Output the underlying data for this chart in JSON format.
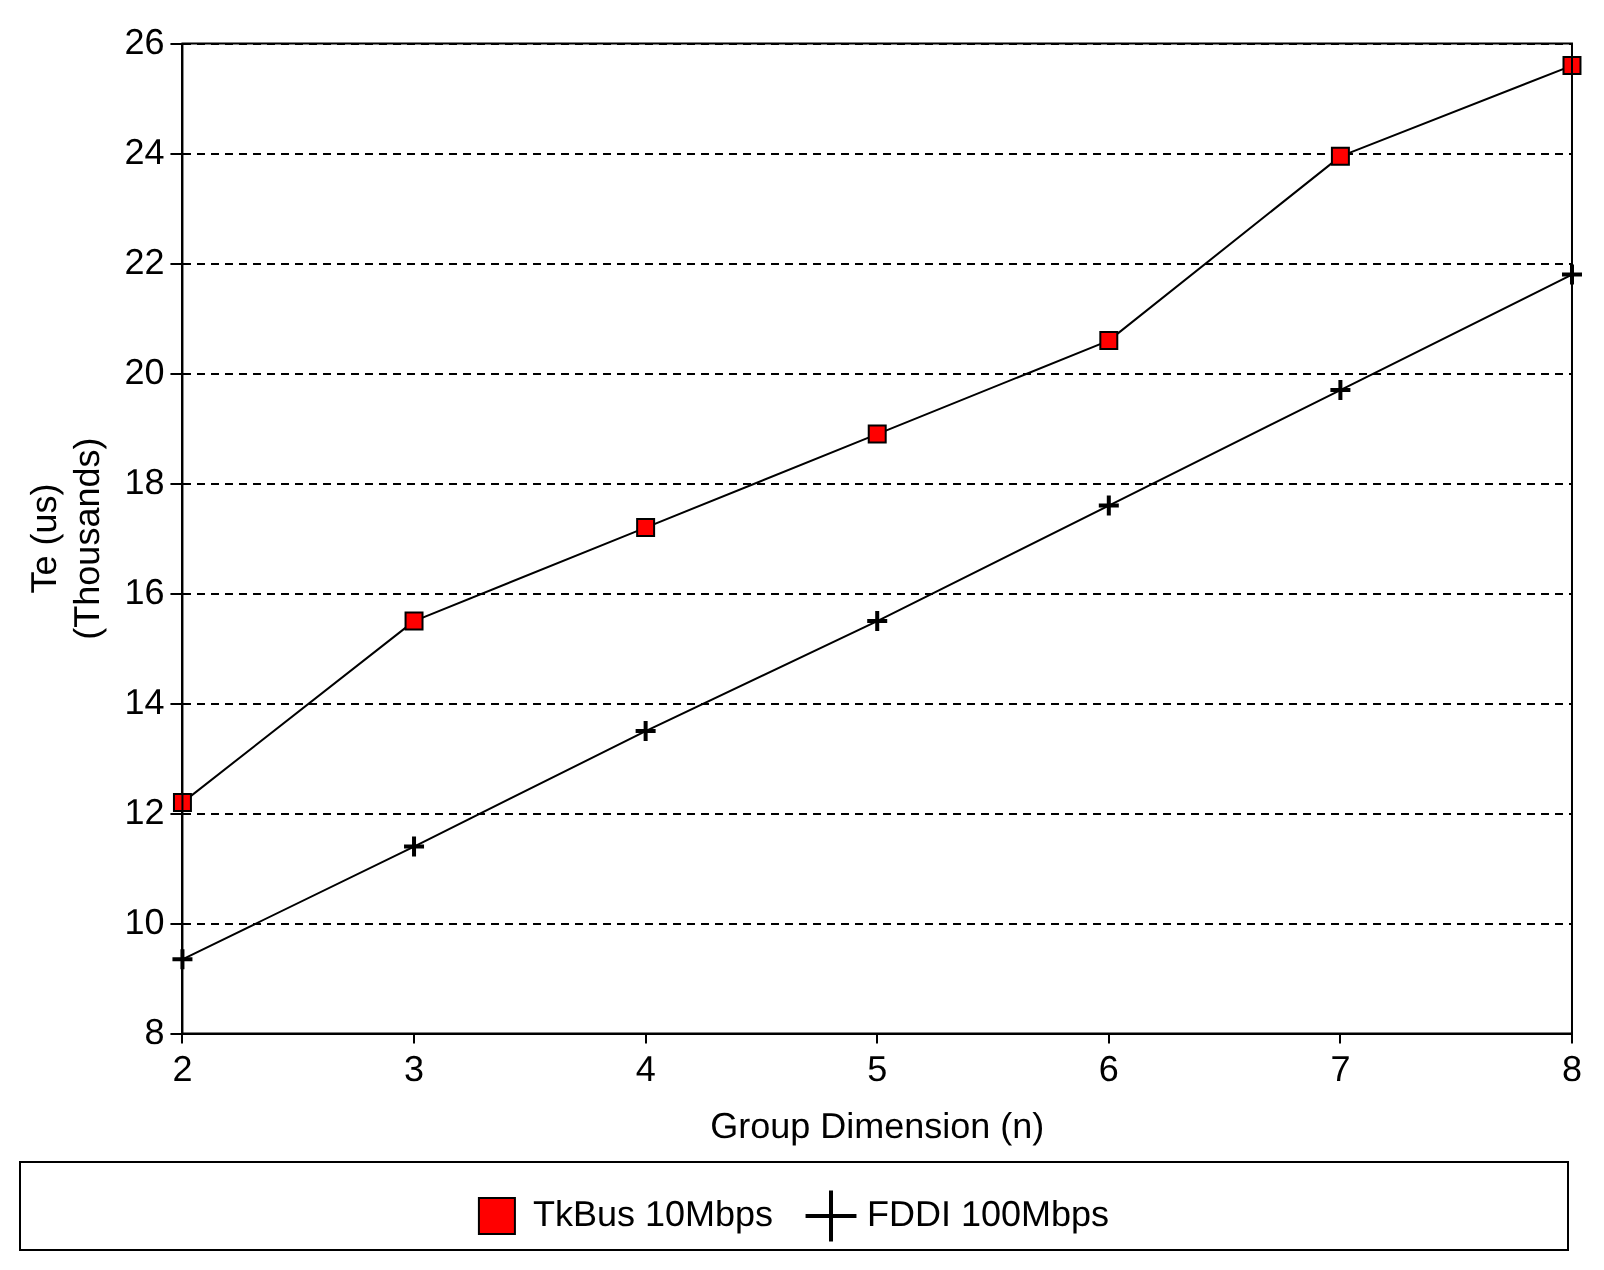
{
  "chart_data": {
    "type": "line",
    "xlabel": "Group Dimension (n)",
    "ylabel": "Te (us)\n(Thousands)",
    "x": [
      2,
      3,
      4,
      5,
      6,
      7,
      8
    ],
    "series": [
      {
        "name": "TkBus 10Mbps",
        "color": "#ff0000",
        "marker": "square",
        "values": [
          12.2,
          15.5,
          17.2,
          18.9,
          20.6,
          23.95,
          25.6
        ]
      },
      {
        "name": "FDDI 100Mbps",
        "color": "#000000",
        "marker": "cross",
        "values": [
          9.35,
          11.4,
          13.5,
          15.5,
          17.6,
          19.7,
          21.8
        ]
      }
    ],
    "xlim": [
      2,
      8
    ],
    "xticks": [
      2,
      3,
      4,
      5,
      6,
      7,
      8
    ],
    "ylim": [
      8,
      26
    ],
    "yticks": [
      8,
      10,
      12,
      14,
      16,
      18,
      20,
      22,
      24,
      26
    ],
    "grid": "y",
    "legend": "bottom",
    "line_style": "solid"
  }
}
